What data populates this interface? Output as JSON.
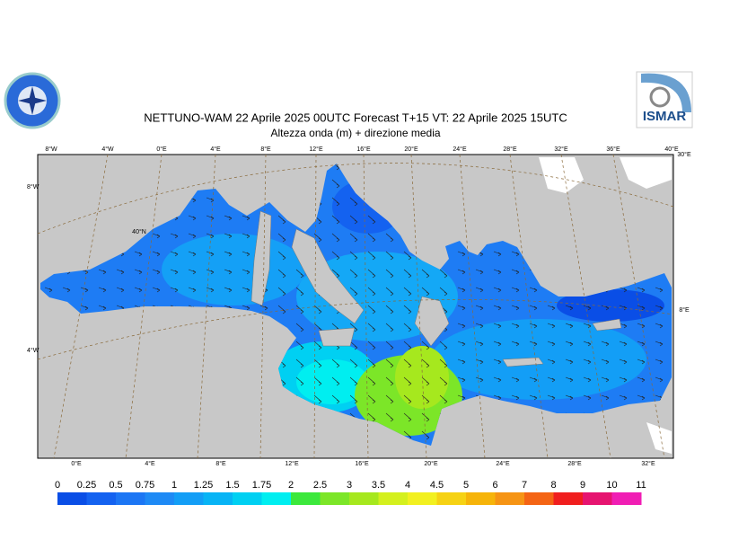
{
  "header": {
    "title": "NETTUNO-WAM  22   Aprile  2025 00UTC Forecast T+15 VT: 22   Aprile  2025 15UTC",
    "subtitle": "Altezza onda (m) + direzione media",
    "logo_text": "ISMAR"
  },
  "map": {
    "top_labels": [
      "8°W",
      "4°W",
      "0°E",
      "4°E",
      "8°E",
      "12°E",
      "16°E",
      "20°E",
      "24°E",
      "28°E",
      "32°E",
      "36°E",
      "40°E"
    ],
    "bottom_labels": [
      "0°E",
      "4°E",
      "8°E",
      "12°E",
      "16°E",
      "20°E",
      "24°E",
      "28°E",
      "32°E"
    ],
    "left_labels": [
      "8°W",
      "4°W"
    ],
    "inner_labels": [
      "40°N"
    ],
    "right_labels": [
      "30°E",
      "8°E"
    ]
  },
  "legend": {
    "ticks": [
      0,
      0.25,
      0.5,
      0.75,
      1,
      1.25,
      1.5,
      1.75,
      2,
      2.5,
      3,
      3.5,
      4,
      4.5,
      5,
      6,
      7,
      8,
      9,
      10,
      11
    ],
    "colors": [
      "#0a4ee6",
      "#1462f0",
      "#1c76f4",
      "#1e8af5",
      "#139ef6",
      "#08b4f5",
      "#00d0f2",
      "#00eef0",
      "#3ce83c",
      "#7ce628",
      "#a6e81e",
      "#d4f01e",
      "#f2f020",
      "#f6d214",
      "#f6b40a",
      "#f69414",
      "#f46414",
      "#f01e1e",
      "#e61470",
      "#f01eb4"
    ]
  }
}
